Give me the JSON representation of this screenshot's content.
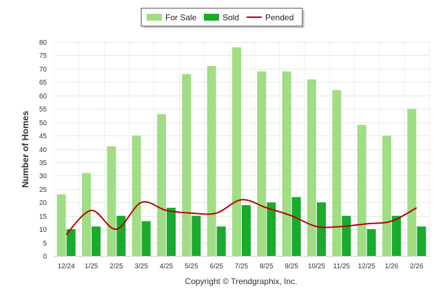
{
  "chart_data": {
    "type": "bar",
    "categories": [
      "12/24",
      "1/25",
      "2/25",
      "3/25",
      "4/25",
      "5/25",
      "6/25",
      "7/25",
      "8/25",
      "9/25",
      "10/25",
      "11/25",
      "12/25",
      "1/26",
      "2/26"
    ],
    "series": [
      {
        "name": "For Sale",
        "type": "bar",
        "color": "#a0dd84",
        "values": [
          23,
          31,
          41,
          45,
          53,
          68,
          71,
          78,
          69,
          69,
          66,
          62,
          49,
          45,
          55
        ]
      },
      {
        "name": "Sold",
        "type": "bar",
        "color": "#1aaa2e",
        "values": [
          10,
          11,
          15,
          13,
          18,
          15,
          11,
          19,
          20,
          22,
          20,
          15,
          10,
          15,
          11
        ]
      },
      {
        "name": "Pended",
        "type": "line",
        "color": "#b30000",
        "values": [
          8,
          17,
          10,
          20,
          17,
          16,
          16,
          21,
          18,
          15,
          11,
          11,
          12,
          13,
          18
        ]
      }
    ],
    "ylabel": "Number of Homes",
    "xlabel": "",
    "ylim": [
      0,
      80
    ],
    "yticks": [
      0,
      5,
      10,
      15,
      20,
      25,
      30,
      35,
      40,
      45,
      50,
      55,
      60,
      65,
      70,
      75,
      80
    ],
    "grid": true,
    "legend_position": "top-center"
  },
  "footer": {
    "copyright": "Copyright © Trendgraphix, Inc."
  }
}
